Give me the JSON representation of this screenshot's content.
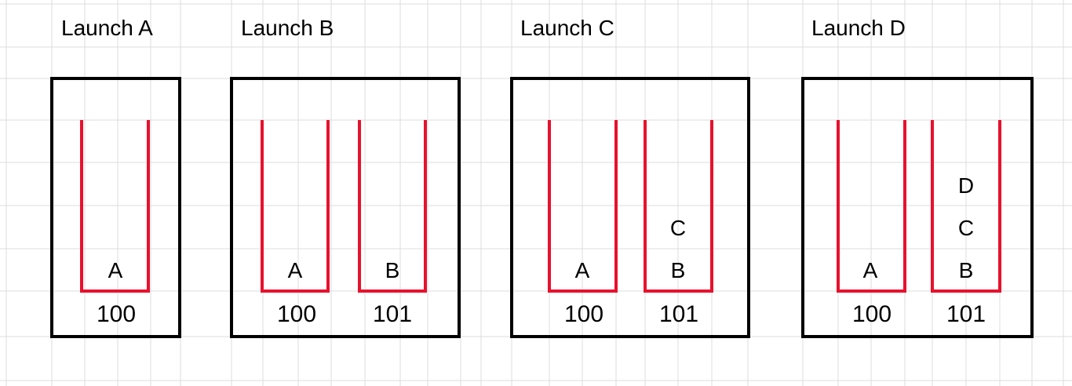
{
  "colors": {
    "grid": "#dcdcdc",
    "box_border": "#000000",
    "stack_outline": "#e8112d",
    "text": "#000000"
  },
  "launches": [
    {
      "title": "Launch A",
      "stacks": [
        {
          "id": "100",
          "items": [
            "A"
          ]
        }
      ]
    },
    {
      "title": "Launch B",
      "stacks": [
        {
          "id": "100",
          "items": [
            "A"
          ]
        },
        {
          "id": "101",
          "items": [
            "B"
          ]
        }
      ]
    },
    {
      "title": "Launch C",
      "stacks": [
        {
          "id": "100",
          "items": [
            "A"
          ]
        },
        {
          "id": "101",
          "items": [
            "B",
            "C"
          ]
        }
      ]
    },
    {
      "title": "Launch D",
      "stacks": [
        {
          "id": "100",
          "items": [
            "A"
          ]
        },
        {
          "id": "101",
          "items": [
            "B",
            "C",
            "D"
          ]
        }
      ]
    }
  ]
}
